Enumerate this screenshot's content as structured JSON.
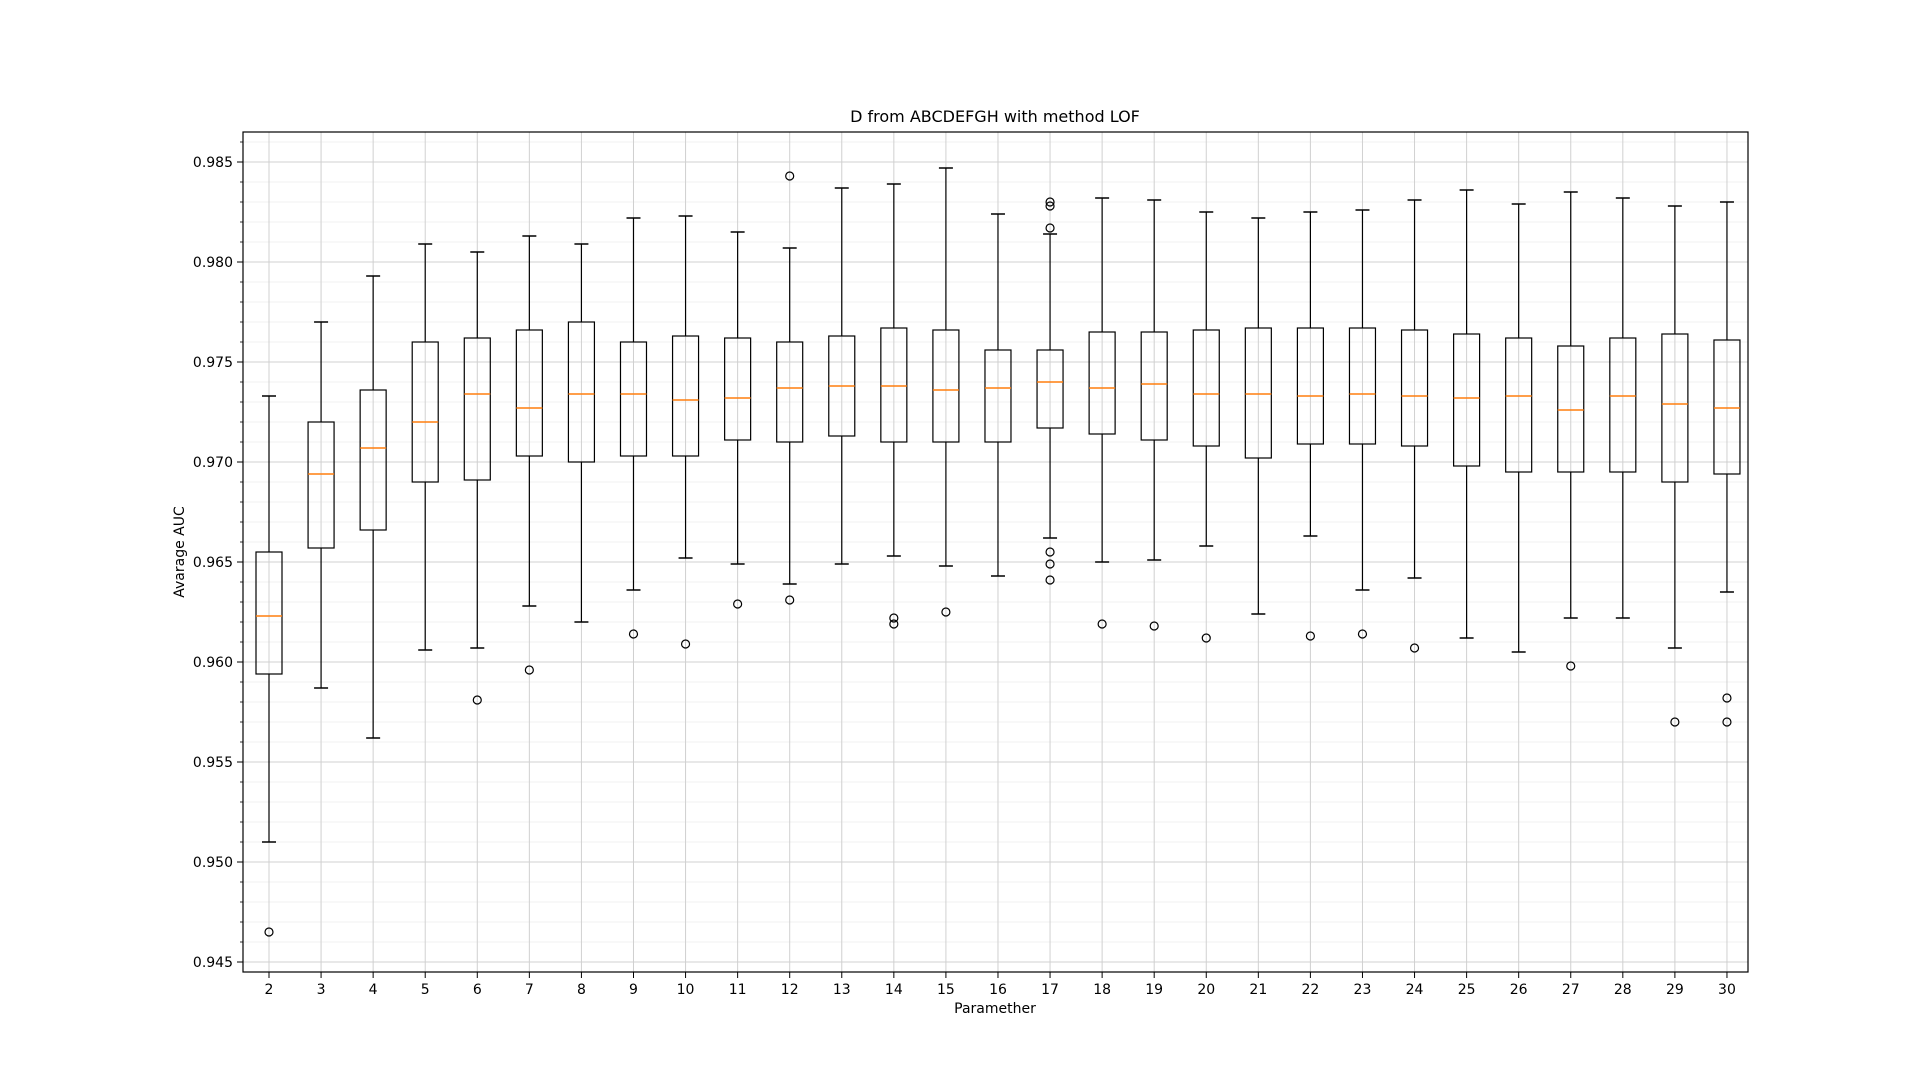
{
  "chart_data": {
    "type": "boxplot",
    "title": "D from ABCDEFGH with method LOF",
    "xlabel": "Paramether",
    "ylabel": "Avarage AUC",
    "ylim": [
      0.9445,
      0.9865
    ],
    "yticks": [
      "0.945",
      "0.950",
      "0.955",
      "0.960",
      "0.965",
      "0.970",
      "0.975",
      "0.980",
      "0.985"
    ],
    "grid": "major and minor",
    "categories": [
      "2",
      "3",
      "4",
      "5",
      "6",
      "7",
      "8",
      "9",
      "10",
      "11",
      "12",
      "13",
      "14",
      "15",
      "16",
      "17",
      "18",
      "19",
      "20",
      "21",
      "22",
      "23",
      "24",
      "25",
      "26",
      "27",
      "28",
      "29",
      "30"
    ],
    "boxes": [
      {
        "x": "2",
        "whisker_low": 0.951,
        "q1": 0.9594,
        "median": 0.9623,
        "q3": 0.9655,
        "whisker_high": 0.9733,
        "outliers": [
          0.9465
        ]
      },
      {
        "x": "3",
        "whisker_low": 0.9587,
        "q1": 0.9657,
        "median": 0.9694,
        "q3": 0.972,
        "whisker_high": 0.977,
        "outliers": []
      },
      {
        "x": "4",
        "whisker_low": 0.9562,
        "q1": 0.9666,
        "median": 0.9707,
        "q3": 0.9736,
        "whisker_high": 0.9793,
        "outliers": []
      },
      {
        "x": "5",
        "whisker_low": 0.9606,
        "q1": 0.969,
        "median": 0.972,
        "q3": 0.976,
        "whisker_high": 0.9809,
        "outliers": []
      },
      {
        "x": "6",
        "whisker_low": 0.9607,
        "q1": 0.9691,
        "median": 0.9734,
        "q3": 0.9762,
        "whisker_high": 0.9805,
        "outliers": [
          0.9581
        ]
      },
      {
        "x": "7",
        "whisker_low": 0.9628,
        "q1": 0.9703,
        "median": 0.9727,
        "q3": 0.9766,
        "whisker_high": 0.9813,
        "outliers": [
          0.9596
        ]
      },
      {
        "x": "8",
        "whisker_low": 0.962,
        "q1": 0.97,
        "median": 0.9734,
        "q3": 0.977,
        "whisker_high": 0.9809,
        "outliers": []
      },
      {
        "x": "9",
        "whisker_low": 0.9636,
        "q1": 0.9703,
        "median": 0.9734,
        "q3": 0.976,
        "whisker_high": 0.9822,
        "outliers": [
          0.9614
        ]
      },
      {
        "x": "10",
        "whisker_low": 0.9652,
        "q1": 0.9703,
        "median": 0.9731,
        "q3": 0.9763,
        "whisker_high": 0.9823,
        "outliers": [
          0.9609
        ]
      },
      {
        "x": "11",
        "whisker_low": 0.9649,
        "q1": 0.9711,
        "median": 0.9732,
        "q3": 0.9762,
        "whisker_high": 0.9815,
        "outliers": [
          0.9629
        ]
      },
      {
        "x": "12",
        "whisker_low": 0.9639,
        "q1": 0.971,
        "median": 0.9737,
        "q3": 0.976,
        "whisker_high": 0.9807,
        "outliers": [
          0.9631,
          0.9843
        ]
      },
      {
        "x": "13",
        "whisker_low": 0.9649,
        "q1": 0.9713,
        "median": 0.9738,
        "q3": 0.9763,
        "whisker_high": 0.9837,
        "outliers": []
      },
      {
        "x": "14",
        "whisker_low": 0.9653,
        "q1": 0.971,
        "median": 0.9738,
        "q3": 0.9767,
        "whisker_high": 0.9839,
        "outliers": [
          0.9619,
          0.9622
        ]
      },
      {
        "x": "15",
        "whisker_low": 0.9648,
        "q1": 0.971,
        "median": 0.9736,
        "q3": 0.9766,
        "whisker_high": 0.9847,
        "outliers": [
          0.9625
        ]
      },
      {
        "x": "16",
        "whisker_low": 0.9643,
        "q1": 0.971,
        "median": 0.9737,
        "q3": 0.9756,
        "whisker_high": 0.9824,
        "outliers": []
      },
      {
        "x": "17",
        "whisker_low": 0.9662,
        "q1": 0.9717,
        "median": 0.974,
        "q3": 0.9756,
        "whisker_high": 0.9814,
        "outliers": [
          0.9641,
          0.9649,
          0.9655,
          0.9817,
          0.9828,
          0.983
        ]
      },
      {
        "x": "18",
        "whisker_low": 0.965,
        "q1": 0.9714,
        "median": 0.9737,
        "q3": 0.9765,
        "whisker_high": 0.9832,
        "outliers": [
          0.9619
        ]
      },
      {
        "x": "19",
        "whisker_low": 0.9651,
        "q1": 0.9711,
        "median": 0.9739,
        "q3": 0.9765,
        "whisker_high": 0.9831,
        "outliers": [
          0.9618
        ]
      },
      {
        "x": "20",
        "whisker_low": 0.9658,
        "q1": 0.9708,
        "median": 0.9734,
        "q3": 0.9766,
        "whisker_high": 0.9825,
        "outliers": [
          0.9612
        ]
      },
      {
        "x": "21",
        "whisker_low": 0.9624,
        "q1": 0.9702,
        "median": 0.9734,
        "q3": 0.9767,
        "whisker_high": 0.9822,
        "outliers": []
      },
      {
        "x": "22",
        "whisker_low": 0.9663,
        "q1": 0.9709,
        "median": 0.9733,
        "q3": 0.9767,
        "whisker_high": 0.9825,
        "outliers": [
          0.9613
        ]
      },
      {
        "x": "23",
        "whisker_low": 0.9636,
        "q1": 0.9709,
        "median": 0.9734,
        "q3": 0.9767,
        "whisker_high": 0.9826,
        "outliers": [
          0.9614
        ]
      },
      {
        "x": "24",
        "whisker_low": 0.9642,
        "q1": 0.9708,
        "median": 0.9733,
        "q3": 0.9766,
        "whisker_high": 0.9831,
        "outliers": [
          0.9607
        ]
      },
      {
        "x": "25",
        "whisker_low": 0.9612,
        "q1": 0.9698,
        "median": 0.9732,
        "q3": 0.9764,
        "whisker_high": 0.9836,
        "outliers": []
      },
      {
        "x": "26",
        "whisker_low": 0.9605,
        "q1": 0.9695,
        "median": 0.9733,
        "q3": 0.9762,
        "whisker_high": 0.9829,
        "outliers": []
      },
      {
        "x": "27",
        "whisker_low": 0.9622,
        "q1": 0.9695,
        "median": 0.9726,
        "q3": 0.9758,
        "whisker_high": 0.9835,
        "outliers": [
          0.9598
        ]
      },
      {
        "x": "28",
        "whisker_low": 0.9622,
        "q1": 0.9695,
        "median": 0.9733,
        "q3": 0.9762,
        "whisker_high": 0.9832,
        "outliers": []
      },
      {
        "x": "29",
        "whisker_low": 0.9607,
        "q1": 0.969,
        "median": 0.9729,
        "q3": 0.9764,
        "whisker_high": 0.9828,
        "outliers": [
          0.957
        ]
      },
      {
        "x": "30",
        "whisker_low": 0.9635,
        "q1": 0.9694,
        "median": 0.9727,
        "q3": 0.9761,
        "whisker_high": 0.983,
        "outliers": [
          0.957,
          0.9582
        ]
      }
    ],
    "colors": {
      "box": "#000000",
      "median": "#ff7f0e",
      "major_grid": "#d0d0d0",
      "minor_grid": "#ececec"
    }
  }
}
